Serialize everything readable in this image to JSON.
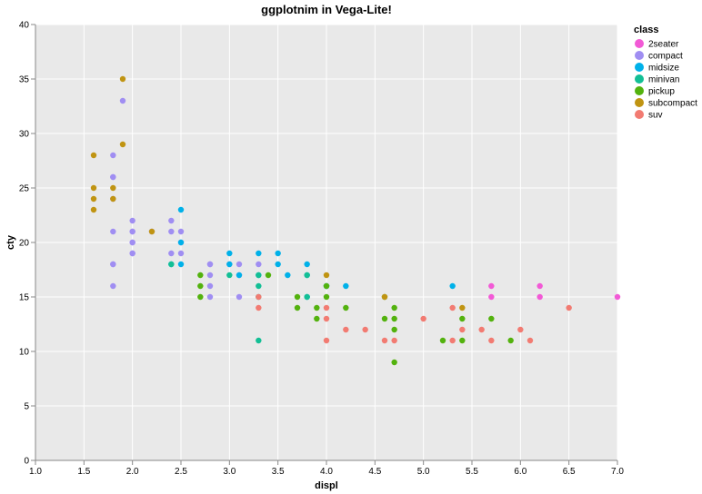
{
  "chart_data": {
    "type": "scatter",
    "title": "ggplotnim in Vega-Lite!",
    "xlabel": "displ",
    "ylabel": "cty",
    "xlim": [
      1.0,
      7.0
    ],
    "ylim": [
      0,
      40
    ],
    "x_ticks": [
      "1.0",
      "1.5",
      "2.0",
      "2.5",
      "3.0",
      "3.5",
      "4.0",
      "4.5",
      "5.0",
      "5.5",
      "6.0",
      "6.5",
      "7.0"
    ],
    "y_ticks": [
      "0",
      "5",
      "10",
      "15",
      "20",
      "25",
      "30",
      "35",
      "40"
    ],
    "grid": true,
    "background": "#e9e9e9",
    "legend": {
      "title": "class",
      "position": "top-right",
      "entries": [
        {
          "label": "2seater",
          "color": "#f25ad6"
        },
        {
          "label": "compact",
          "color": "#a08ef2"
        },
        {
          "label": "midsize",
          "color": "#00b1e9"
        },
        {
          "label": "minivan",
          "color": "#13bf95"
        },
        {
          "label": "pickup",
          "color": "#53b20e"
        },
        {
          "label": "subcompact",
          "color": "#c09412"
        },
        {
          "label": "suv",
          "color": "#f27b72"
        }
      ]
    },
    "series": [
      {
        "name": "2seater",
        "points": [
          [
            5.7,
            16
          ],
          [
            5.7,
            15
          ],
          [
            6.2,
            16
          ],
          [
            6.2,
            15
          ],
          [
            7.0,
            15
          ]
        ]
      },
      {
        "name": "compact",
        "points": [
          [
            1.8,
            18
          ],
          [
            1.8,
            21
          ],
          [
            2.0,
            20
          ],
          [
            2.0,
            21
          ],
          [
            2.8,
            16
          ],
          [
            2.8,
            18
          ],
          [
            3.1,
            18
          ],
          [
            1.8,
            18
          ],
          [
            1.8,
            16
          ],
          [
            2.0,
            20
          ],
          [
            2.0,
            19
          ],
          [
            2.8,
            15
          ],
          [
            2.8,
            17
          ],
          [
            3.1,
            17
          ],
          [
            1.8,
            26
          ],
          [
            1.8,
            24
          ],
          [
            1.9,
            33
          ],
          [
            2.0,
            22
          ],
          [
            2.2,
            21
          ],
          [
            2.4,
            21
          ],
          [
            2.4,
            22
          ],
          [
            2.4,
            19
          ],
          [
            2.5,
            21
          ],
          [
            2.5,
            20
          ],
          [
            2.5,
            19
          ],
          [
            2.8,
            18
          ],
          [
            3.3,
            18
          ],
          [
            3.0,
            18
          ],
          [
            3.1,
            15
          ],
          [
            1.8,
            28
          ],
          [
            1.8,
            26
          ],
          [
            2.0,
            21
          ],
          [
            2.0,
            19
          ]
        ]
      },
      {
        "name": "midsize",
        "points": [
          [
            2.4,
            18
          ],
          [
            2.5,
            18
          ],
          [
            2.5,
            23
          ],
          [
            2.5,
            20
          ],
          [
            3.0,
            19
          ],
          [
            3.0,
            18
          ],
          [
            3.3,
            19
          ],
          [
            3.5,
            19
          ],
          [
            3.5,
            18
          ],
          [
            3.8,
            18
          ],
          [
            3.8,
            17
          ],
          [
            3.3,
            17
          ],
          [
            3.6,
            17
          ],
          [
            3.8,
            15
          ],
          [
            4.0,
            16
          ],
          [
            4.2,
            16
          ],
          [
            5.3,
            16
          ],
          [
            3.1,
            17
          ]
        ]
      },
      {
        "name": "minivan",
        "points": [
          [
            3.3,
            11
          ],
          [
            3.3,
            17
          ],
          [
            3.3,
            16
          ],
          [
            3.3,
            15
          ],
          [
            3.8,
            15
          ],
          [
            3.8,
            17
          ],
          [
            4.0,
            16
          ],
          [
            2.4,
            18
          ],
          [
            3.0,
            17
          ]
        ]
      },
      {
        "name": "pickup",
        "points": [
          [
            2.7,
            15
          ],
          [
            2.7,
            16
          ],
          [
            2.7,
            17
          ],
          [
            3.4,
            17
          ],
          [
            3.7,
            15
          ],
          [
            3.7,
            14
          ],
          [
            3.9,
            14
          ],
          [
            3.9,
            13
          ],
          [
            4.0,
            15
          ],
          [
            4.0,
            16
          ],
          [
            4.2,
            14
          ],
          [
            4.6,
            15
          ],
          [
            4.6,
            13
          ],
          [
            4.7,
            14
          ],
          [
            4.7,
            13
          ],
          [
            4.7,
            12
          ],
          [
            4.7,
            9
          ],
          [
            5.2,
            11
          ],
          [
            5.4,
            13
          ],
          [
            5.4,
            11
          ],
          [
            5.7,
            13
          ],
          [
            5.9,
            11
          ]
        ]
      },
      {
        "name": "subcompact",
        "points": [
          [
            1.6,
            28
          ],
          [
            1.6,
            25
          ],
          [
            1.6,
            24
          ],
          [
            1.6,
            23
          ],
          [
            1.8,
            25
          ],
          [
            1.9,
            35
          ],
          [
            1.9,
            29
          ],
          [
            2.2,
            21
          ],
          [
            4.0,
            17
          ],
          [
            4.6,
            15
          ],
          [
            5.4,
            14
          ],
          [
            1.8,
            24
          ]
        ]
      },
      {
        "name": "suv",
        "points": [
          [
            3.3,
            15
          ],
          [
            3.3,
            14
          ],
          [
            4.0,
            14
          ],
          [
            4.0,
            13
          ],
          [
            4.0,
            11
          ],
          [
            4.2,
            12
          ],
          [
            4.4,
            12
          ],
          [
            4.6,
            11
          ],
          [
            4.7,
            11
          ],
          [
            5.0,
            13
          ],
          [
            5.3,
            14
          ],
          [
            5.3,
            11
          ],
          [
            5.4,
            12
          ],
          [
            5.6,
            12
          ],
          [
            5.7,
            11
          ],
          [
            6.0,
            12
          ],
          [
            6.1,
            11
          ],
          [
            6.5,
            14
          ]
        ]
      }
    ]
  }
}
